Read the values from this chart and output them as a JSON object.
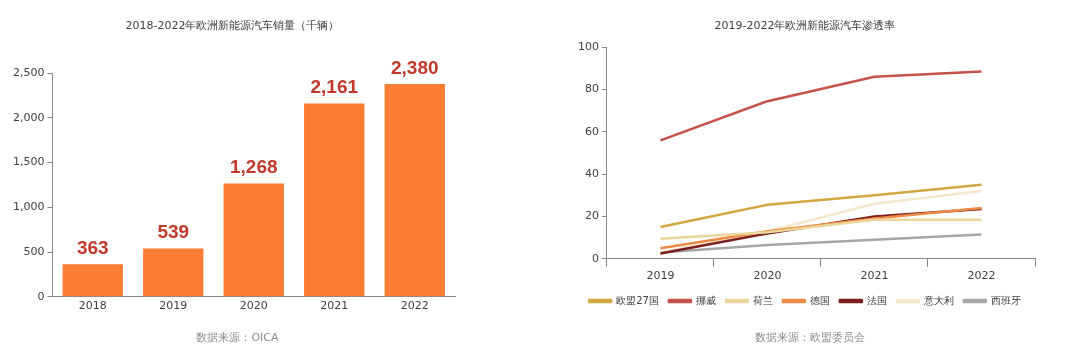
{
  "chart_data": [
    {
      "type": "bar",
      "title": "2018-2022年欧洲新能源汽车销量（千辆）",
      "categories": [
        "2018",
        "2019",
        "2020",
        "2021",
        "2022"
      ],
      "values": [
        363,
        539,
        1268,
        2161,
        2380
      ],
      "value_labels": [
        "363",
        "539",
        "1,268",
        "2,161",
        "2,380"
      ],
      "color": "#fb7d33",
      "ylim": [
        0,
        2500
      ],
      "yticks": [
        {
          "value": 0,
          "label": "0"
        },
        {
          "value": 500,
          "label": "500"
        },
        {
          "value": 1000,
          "label": "1,000"
        },
        {
          "value": 1500,
          "label": "1,500"
        },
        {
          "value": 2000,
          "label": "2,000"
        },
        {
          "value": 2500,
          "label": "2,500"
        }
      ],
      "grid": false,
      "legend": false,
      "annotations": [
        "数据来源：OICA"
      ]
    },
    {
      "type": "line",
      "title": "2019-2022年欧洲新能源汽车渗透率",
      "categories": [
        "2019",
        "2020",
        "2021",
        "2022"
      ],
      "series": [
        {
          "name": "欧盟27国",
          "color": "#d0a743",
          "values": [
            15,
            25.5,
            30,
            35
          ]
        },
        {
          "name": "挪威",
          "color": "#c5534a",
          "values": [
            56,
            74.5,
            86,
            88.5
          ]
        },
        {
          "name": "荷兰",
          "color": "#ead59a",
          "values": [
            9.5,
            12.5,
            18.5,
            18.5
          ]
        },
        {
          "name": "德国",
          "color": "#ed8a45",
          "values": [
            5,
            13,
            19,
            24
          ]
        },
        {
          "name": "法国",
          "color": "#7a1e1e",
          "values": [
            2.5,
            12,
            20,
            23.5
          ]
        },
        {
          "name": "意大利",
          "color": "#f3e8cb",
          "values": [
            3,
            13,
            26,
            32
          ]
        },
        {
          "name": "西班牙",
          "color": "#a6a6a6",
          "values": [
            3,
            6.5,
            9,
            11.5
          ]
        }
      ],
      "ylim": [
        0,
        100
      ],
      "yticks": [
        0,
        20,
        40,
        60,
        80,
        100
      ],
      "grid": false,
      "legend": "bottom",
      "marker": "none",
      "annotations": [
        "数据来源：欧盟委员会"
      ]
    }
  ]
}
